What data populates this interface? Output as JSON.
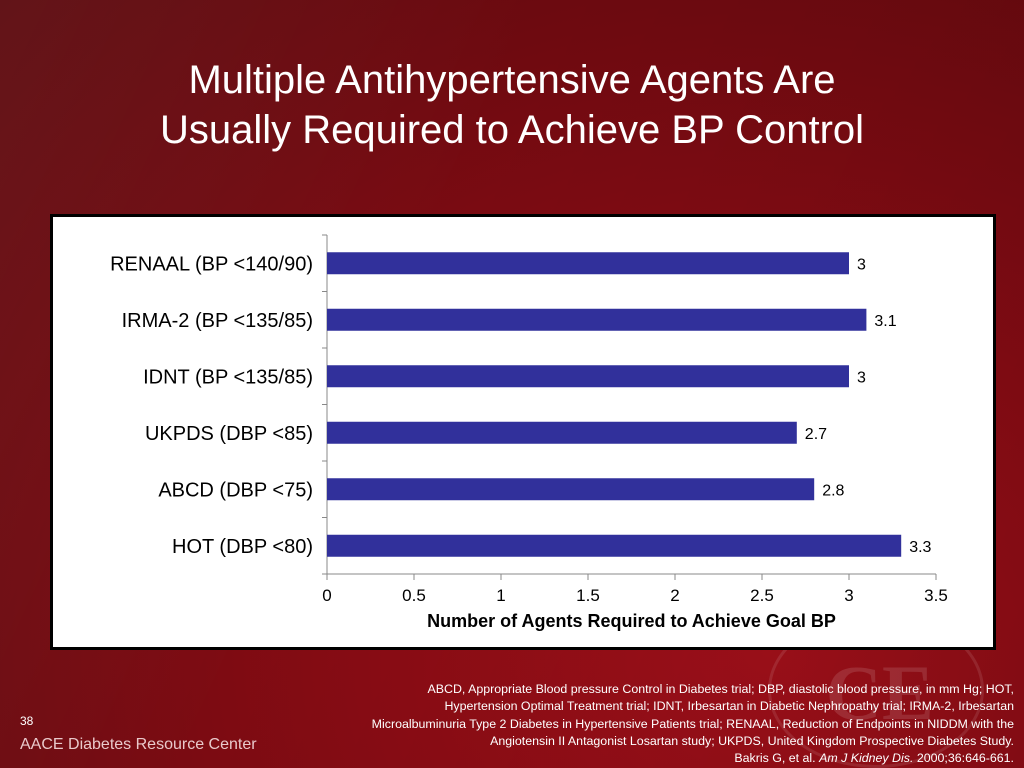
{
  "slide": {
    "title_lines": [
      "Multiple Antihypertensive Agents Are",
      "Usually Required to Achieve BP Control"
    ],
    "slide_number": "38",
    "footer_brand": "AACE Diabetes Resource Center",
    "watermark": "CE",
    "footnote_lines": [
      "ABCD, Appropriate Blood pressure Control in Diabetes trial; DBP, diastolic blood pressure, in mm Hg; HOT,",
      "Hypertension Optimal Treatment trial; IDNT, Irbesartan in Diabetic Nephropathy trial; IRMA-2, Irbesartan",
      "Microalbuminuria Type 2 Diabetes in Hypertensive Patients trial; RENAAL, Reduction of Endpoints in NIDDM with the",
      "Angiotensin II Antagonist Losartan study; UKPDS, United Kingdom Prospective Diabetes Study."
    ],
    "citation": {
      "prefix": "Bakris G, et al. ",
      "journal": "Am J Kidney Dis.",
      "suffix": " 2000;36:646-661."
    },
    "colors": {
      "background": "#8a0c14",
      "bar": "#31309b"
    }
  },
  "chart_data": {
    "type": "bar",
    "orientation": "horizontal",
    "categories": [
      "RENAAL (BP <140/90)",
      "IRMA-2 (BP <135/85)",
      "IDNT (BP <135/85)",
      "UKPDS (DBP <85)",
      "ABCD (DBP <75)",
      "HOT (DBP <80)"
    ],
    "values": [
      3,
      3.1,
      3,
      2.7,
      2.8,
      3.3
    ],
    "value_labels": [
      "3",
      "3.1",
      "3",
      "2.7",
      "2.8",
      "3.3"
    ],
    "xlabel": "Number of Agents Required to Achieve Goal BP",
    "xlim": [
      0,
      3.5
    ],
    "xticks": [
      "0",
      "0.5",
      "1",
      "1.5",
      "2",
      "2.5",
      "3",
      "3.5"
    ],
    "grid": false,
    "legend": false
  }
}
